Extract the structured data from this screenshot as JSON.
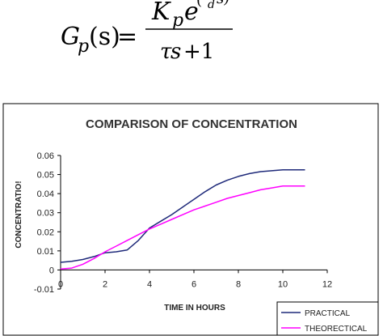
{
  "formula": {
    "lhs_main": "G",
    "lhs_sub": "p",
    "lhs_arg": "(s)",
    "equals": "=",
    "num_k": "K",
    "num_k_sub": "p",
    "num_e": "e",
    "num_exp_paren": "(",
    "num_exp_sub": "d",
    "num_exp_s": "s)",
    "den_tau": "τ",
    "den_s": "s",
    "den_plus_one": "+1"
  },
  "chart_data": {
    "type": "line",
    "title": "COMPARISON OF CONCENTRATION",
    "xlabel": "TIME IN HOURS",
    "ylabel": "CONCENTRATIO!",
    "xlim": [
      0,
      12
    ],
    "ylim": [
      -0.01,
      0.06
    ],
    "x_ticks": [
      0,
      2,
      4,
      6,
      8,
      10,
      12
    ],
    "y_ticks": [
      -0.01,
      0,
      0.01,
      0.02,
      0.03,
      0.04,
      0.05,
      0.06
    ],
    "y_tick_labels": [
      "-0.01",
      "0",
      "0.01",
      "0.02",
      "0.03",
      "0.04",
      "0.05",
      "0.06"
    ],
    "grid": false,
    "legend_position": "bottom-right",
    "series": [
      {
        "name": "PRACTICAL",
        "color": "#1f2a7a",
        "x": [
          0,
          0.5,
          1,
          1.5,
          2,
          2.5,
          3,
          3.5,
          4,
          4.5,
          5,
          5.5,
          6,
          6.5,
          7,
          7.5,
          8,
          8.5,
          9,
          9.5,
          10,
          10.5,
          11
        ],
        "y": [
          0.004,
          0.0045,
          0.0055,
          0.007,
          0.009,
          0.0095,
          0.0105,
          0.0155,
          0.022,
          0.0255,
          0.029,
          0.033,
          0.037,
          0.041,
          0.0445,
          0.047,
          0.049,
          0.0505,
          0.0515,
          0.052,
          0.0525,
          0.0525,
          0.0525
        ]
      },
      {
        "name": "THEORECTICAL",
        "color": "#ff00ff",
        "x": [
          0,
          0.5,
          1,
          1.5,
          2,
          2.5,
          3,
          3.5,
          4,
          4.5,
          5,
          5.5,
          6,
          6.5,
          7,
          7.5,
          8,
          8.5,
          9,
          9.5,
          10,
          10.5,
          11
        ],
        "y": [
          0.0005,
          0.001,
          0.003,
          0.006,
          0.0095,
          0.0125,
          0.0155,
          0.0185,
          0.0215,
          0.024,
          0.0265,
          0.029,
          0.0315,
          0.0335,
          0.0355,
          0.0375,
          0.039,
          0.0405,
          0.042,
          0.043,
          0.044,
          0.044,
          0.044
        ]
      }
    ]
  }
}
